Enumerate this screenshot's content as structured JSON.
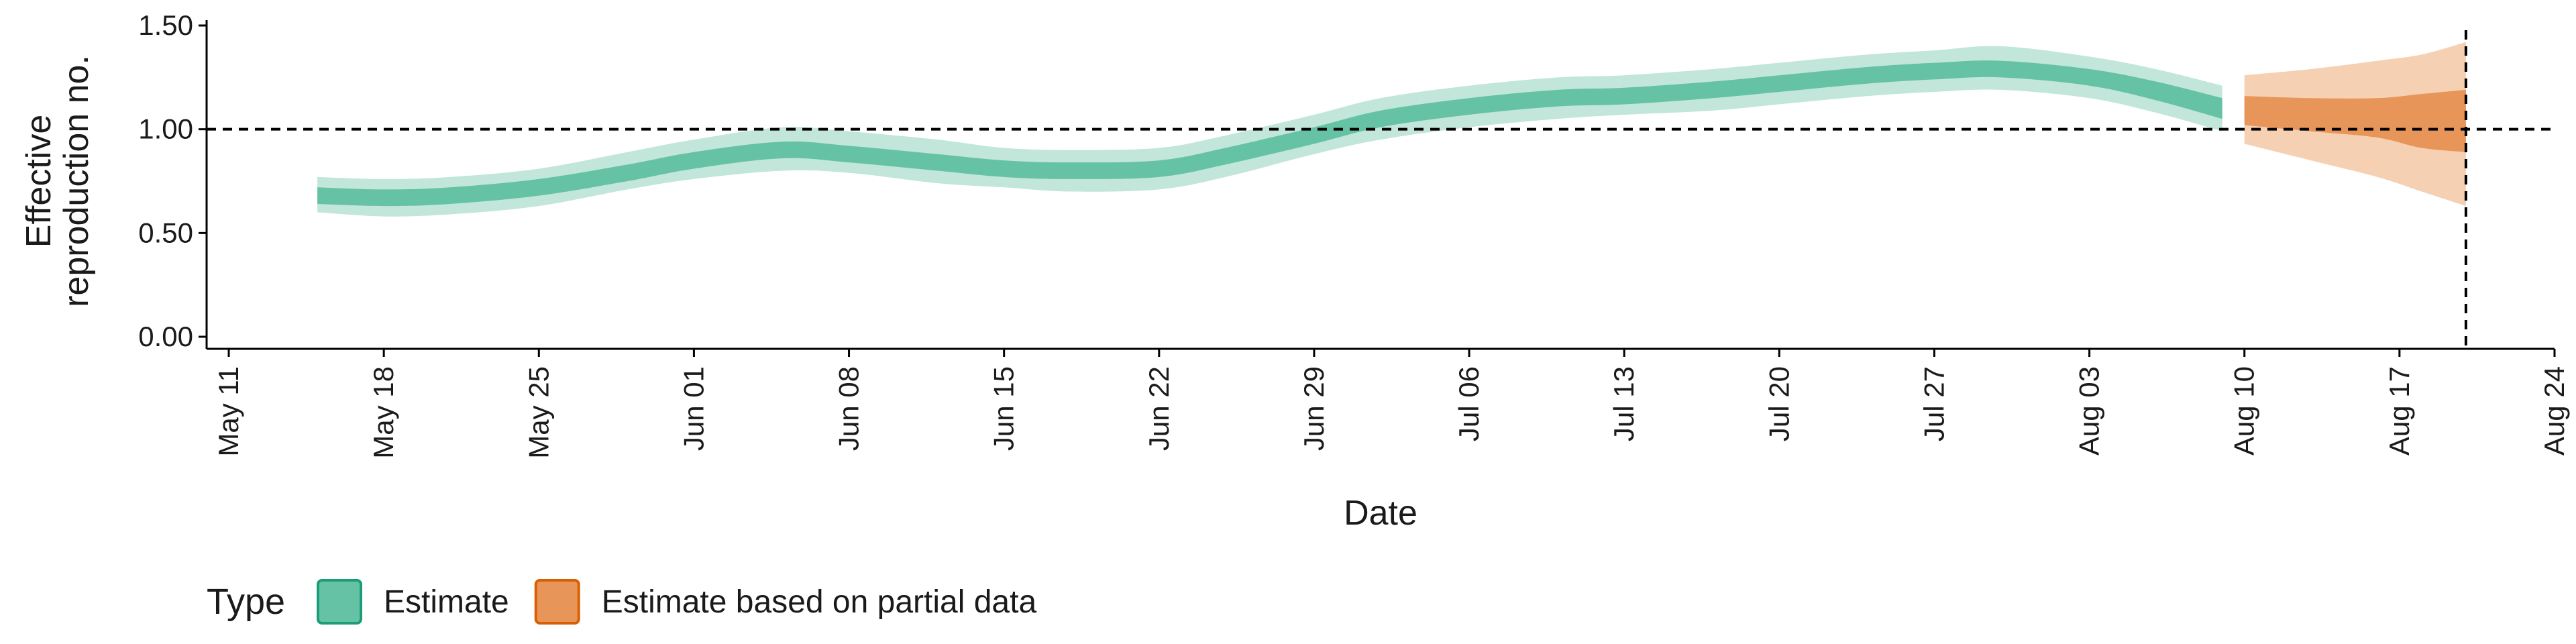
{
  "chart_data": {
    "type": "area",
    "xlabel": "Date",
    "ylabel_lines": [
      "Effective",
      "reproduction no."
    ],
    "ylim": [
      0,
      1.5
    ],
    "y_ticks": [
      {
        "value": 0.0,
        "label": "0.00"
      },
      {
        "value": 0.5,
        "label": "0.50"
      },
      {
        "value": 1.0,
        "label": "1.00"
      },
      {
        "value": 1.5,
        "label": "1.50"
      }
    ],
    "x_ticks": [
      {
        "date": "2020-05-11",
        "label": "May 11"
      },
      {
        "date": "2020-05-18",
        "label": "May 18"
      },
      {
        "date": "2020-05-25",
        "label": "May 25"
      },
      {
        "date": "2020-06-01",
        "label": "Jun 01"
      },
      {
        "date": "2020-06-08",
        "label": "Jun 08"
      },
      {
        "date": "2020-06-15",
        "label": "Jun 15"
      },
      {
        "date": "2020-06-22",
        "label": "Jun 22"
      },
      {
        "date": "2020-06-29",
        "label": "Jun 29"
      },
      {
        "date": "2020-07-06",
        "label": "Jul 06"
      },
      {
        "date": "2020-07-13",
        "label": "Jul 13"
      },
      {
        "date": "2020-07-20",
        "label": "Jul 20"
      },
      {
        "date": "2020-07-27",
        "label": "Jul 27"
      },
      {
        "date": "2020-08-03",
        "label": "Aug 03"
      },
      {
        "date": "2020-08-10",
        "label": "Aug 10"
      },
      {
        "date": "2020-08-17",
        "label": "Aug 17"
      },
      {
        "date": "2020-08-24",
        "label": "Aug 24"
      }
    ],
    "xlim": [
      "2020-05-10",
      "2020-08-24"
    ],
    "reference_hline": 1.0,
    "reference_vline": "2020-08-20",
    "legend": {
      "title": "Type",
      "position": "bottom-left",
      "entries": [
        {
          "name": "Estimate",
          "fill": "#66c2a5",
          "stroke": "#1b9e77"
        },
        {
          "name": "Estimate based on partial data",
          "fill": "#e8955a",
          "stroke": "#d95f02"
        }
      ]
    },
    "series": [
      {
        "name": "Estimate",
        "inner_color": "#66c2a5",
        "outer_color": "#c2e6d9",
        "points": [
          {
            "date": "2020-05-15",
            "outer_lo": 0.6,
            "inner_lo": 0.64,
            "inner_hi": 0.72,
            "outer_hi": 0.77
          },
          {
            "date": "2020-05-18",
            "outer_lo": 0.58,
            "inner_lo": 0.63,
            "inner_hi": 0.71,
            "outer_hi": 0.76
          },
          {
            "date": "2020-05-21",
            "outer_lo": 0.59,
            "inner_lo": 0.64,
            "inner_hi": 0.72,
            "outer_hi": 0.77
          },
          {
            "date": "2020-05-25",
            "outer_lo": 0.63,
            "inner_lo": 0.68,
            "inner_hi": 0.76,
            "outer_hi": 0.81
          },
          {
            "date": "2020-05-29",
            "outer_lo": 0.71,
            "inner_lo": 0.75,
            "inner_hi": 0.83,
            "outer_hi": 0.89
          },
          {
            "date": "2020-06-01",
            "outer_lo": 0.76,
            "inner_lo": 0.81,
            "inner_hi": 0.89,
            "outer_hi": 0.95
          },
          {
            "date": "2020-06-05",
            "outer_lo": 0.8,
            "inner_lo": 0.86,
            "inner_hi": 0.94,
            "outer_hi": 1.01
          },
          {
            "date": "2020-06-08",
            "outer_lo": 0.79,
            "inner_lo": 0.84,
            "inner_hi": 0.92,
            "outer_hi": 0.99
          },
          {
            "date": "2020-06-12",
            "outer_lo": 0.74,
            "inner_lo": 0.8,
            "inner_hi": 0.88,
            "outer_hi": 0.95
          },
          {
            "date": "2020-06-15",
            "outer_lo": 0.72,
            "inner_lo": 0.77,
            "inner_hi": 0.85,
            "outer_hi": 0.91
          },
          {
            "date": "2020-06-18",
            "outer_lo": 0.7,
            "inner_lo": 0.76,
            "inner_hi": 0.84,
            "outer_hi": 0.9
          },
          {
            "date": "2020-06-22",
            "outer_lo": 0.71,
            "inner_lo": 0.77,
            "inner_hi": 0.85,
            "outer_hi": 0.91
          },
          {
            "date": "2020-06-25",
            "outer_lo": 0.77,
            "inner_lo": 0.83,
            "inner_hi": 0.91,
            "outer_hi": 0.97
          },
          {
            "date": "2020-06-29",
            "outer_lo": 0.88,
            "inner_lo": 0.93,
            "inner_hi": 1.01,
            "outer_hi": 1.07
          },
          {
            "date": "2020-07-02",
            "outer_lo": 0.95,
            "inner_lo": 1.01,
            "inner_hi": 1.09,
            "outer_hi": 1.15
          },
          {
            "date": "2020-07-06",
            "outer_lo": 1.01,
            "inner_lo": 1.07,
            "inner_hi": 1.15,
            "outer_hi": 1.21
          },
          {
            "date": "2020-07-10",
            "outer_lo": 1.05,
            "inner_lo": 1.11,
            "inner_hi": 1.19,
            "outer_hi": 1.25
          },
          {
            "date": "2020-07-13",
            "outer_lo": 1.07,
            "inner_lo": 1.12,
            "inner_hi": 1.2,
            "outer_hi": 1.26
          },
          {
            "date": "2020-07-17",
            "outer_lo": 1.09,
            "inner_lo": 1.15,
            "inner_hi": 1.23,
            "outer_hi": 1.29
          },
          {
            "date": "2020-07-20",
            "outer_lo": 1.12,
            "inner_lo": 1.18,
            "inner_hi": 1.26,
            "outer_hi": 1.32
          },
          {
            "date": "2020-07-24",
            "outer_lo": 1.16,
            "inner_lo": 1.22,
            "inner_hi": 1.3,
            "outer_hi": 1.36
          },
          {
            "date": "2020-07-27",
            "outer_lo": 1.18,
            "inner_lo": 1.24,
            "inner_hi": 1.32,
            "outer_hi": 1.38
          },
          {
            "date": "2020-07-30",
            "outer_lo": 1.19,
            "inner_lo": 1.25,
            "inner_hi": 1.33,
            "outer_hi": 1.4
          },
          {
            "date": "2020-08-03",
            "outer_lo": 1.15,
            "inner_lo": 1.21,
            "inner_hi": 1.29,
            "outer_hi": 1.35
          },
          {
            "date": "2020-08-06",
            "outer_lo": 1.08,
            "inner_lo": 1.14,
            "inner_hi": 1.23,
            "outer_hi": 1.29
          },
          {
            "date": "2020-08-09",
            "outer_lo": 0.99,
            "inner_lo": 1.05,
            "inner_hi": 1.15,
            "outer_hi": 1.21
          }
        ]
      },
      {
        "name": "Estimate based on partial data",
        "inner_color": "#e8955a",
        "outer_color": "#f5d0b3",
        "points": [
          {
            "date": "2020-08-10",
            "outer_lo": 0.93,
            "inner_lo": 1.02,
            "inner_hi": 1.16,
            "outer_hi": 1.26
          },
          {
            "date": "2020-08-13",
            "outer_lo": 0.85,
            "inner_lo": 0.99,
            "inner_hi": 1.15,
            "outer_hi": 1.29
          },
          {
            "date": "2020-08-16",
            "outer_lo": 0.77,
            "inner_lo": 0.96,
            "inner_hi": 1.15,
            "outer_hi": 1.33
          },
          {
            "date": "2020-08-18",
            "outer_lo": 0.7,
            "inner_lo": 0.91,
            "inner_hi": 1.17,
            "outer_hi": 1.36
          },
          {
            "date": "2020-08-20",
            "outer_lo": 0.63,
            "inner_lo": 0.89,
            "inner_hi": 1.19,
            "outer_hi": 1.42
          }
        ]
      }
    ]
  }
}
